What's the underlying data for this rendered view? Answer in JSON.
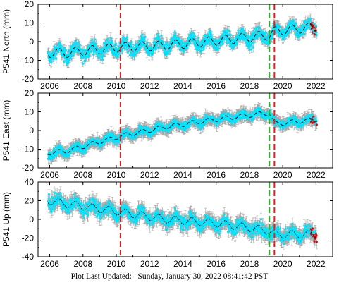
{
  "footer": {
    "prefix": "Plot Last Updated:",
    "datetime": "Sunday, January 30, 2022 08:41:42 PST"
  },
  "colors": {
    "data": "#00e5ff",
    "errorbar": "#a8a8a8",
    "model": "#000000",
    "recent": "#e00000",
    "event_red": "#dd2222",
    "event_green": "#22bb22"
  },
  "chart_data": [
    {
      "type": "scatter",
      "title": "",
      "xlabel": "",
      "ylabel": "P541 North (mm)",
      "xlim": [
        2005.3,
        2023.0
      ],
      "ylim": [
        -20,
        20
      ],
      "xticks": [
        2006,
        2008,
        2010,
        2012,
        2014,
        2016,
        2018,
        2020,
        2022
      ],
      "yticks": [
        -20,
        -10,
        0,
        10,
        20
      ],
      "grid": false,
      "data_start": 2005.9,
      "data_end": 2022.05,
      "vertical_lines": [
        {
          "x": 2010.25,
          "color": "red"
        },
        {
          "x": 2019.2,
          "color": "green"
        },
        {
          "x": 2019.5,
          "color": "red"
        }
      ],
      "trend_model": [
        [
          2005.9,
          -6
        ],
        [
          2007.0,
          -6
        ],
        [
          2010.25,
          -3
        ],
        [
          2013.0,
          -2
        ],
        [
          2016.0,
          0.5
        ],
        [
          2019.2,
          3.5
        ],
        [
          2019.5,
          5.5
        ],
        [
          2022.05,
          8
        ]
      ],
      "seasonal_amplitude": 2.5,
      "scatter_noise": 2.5,
      "errorbar_size": 2.2
    },
    {
      "type": "scatter",
      "title": "",
      "xlabel": "",
      "ylabel": "P541 East (mm)",
      "xlim": [
        2005.3,
        2023.0
      ],
      "ylim": [
        -20,
        20
      ],
      "xticks": [
        2006,
        2008,
        2010,
        2012,
        2014,
        2016,
        2018,
        2020,
        2022
      ],
      "yticks": [
        -20,
        -10,
        0,
        10,
        20
      ],
      "grid": false,
      "data_start": 2005.9,
      "data_end": 2022.05,
      "vertical_lines": [
        {
          "x": 2010.25,
          "color": "red"
        },
        {
          "x": 2019.2,
          "color": "green"
        },
        {
          "x": 2019.5,
          "color": "red"
        }
      ],
      "trend_model": [
        [
          2005.9,
          -12
        ],
        [
          2007.0,
          -11
        ],
        [
          2010.25,
          -3
        ],
        [
          2013.0,
          2
        ],
        [
          2016.0,
          6
        ],
        [
          2019.2,
          9.5
        ],
        [
          2019.5,
          3.5
        ],
        [
          2022.05,
          6
        ]
      ],
      "seasonal_amplitude": 1.2,
      "scatter_noise": 1.6,
      "errorbar_size": 2.5
    },
    {
      "type": "scatter",
      "title": "",
      "xlabel": "",
      "ylabel": "P541 Up (mm)",
      "xlim": [
        2005.3,
        2023.0
      ],
      "ylim": [
        -40,
        40
      ],
      "xticks": [
        2006,
        2008,
        2010,
        2012,
        2014,
        2016,
        2018,
        2020,
        2022
      ],
      "yticks": [
        -40,
        -20,
        0,
        20,
        40
      ],
      "grid": false,
      "data_start": 2005.9,
      "data_end": 2022.05,
      "vertical_lines": [
        {
          "x": 2010.25,
          "color": "red"
        },
        {
          "x": 2019.2,
          "color": "green"
        },
        {
          "x": 2019.5,
          "color": "red"
        }
      ],
      "trend_model": [
        [
          2005.9,
          20
        ],
        [
          2008.0,
          14
        ],
        [
          2010.25,
          8
        ],
        [
          2013.0,
          0
        ],
        [
          2016.0,
          -4
        ],
        [
          2019.2,
          -12
        ],
        [
          2019.5,
          -16
        ],
        [
          2022.05,
          -16
        ]
      ],
      "seasonal_amplitude": 4,
      "scatter_noise": 5,
      "errorbar_size": 6
    }
  ]
}
